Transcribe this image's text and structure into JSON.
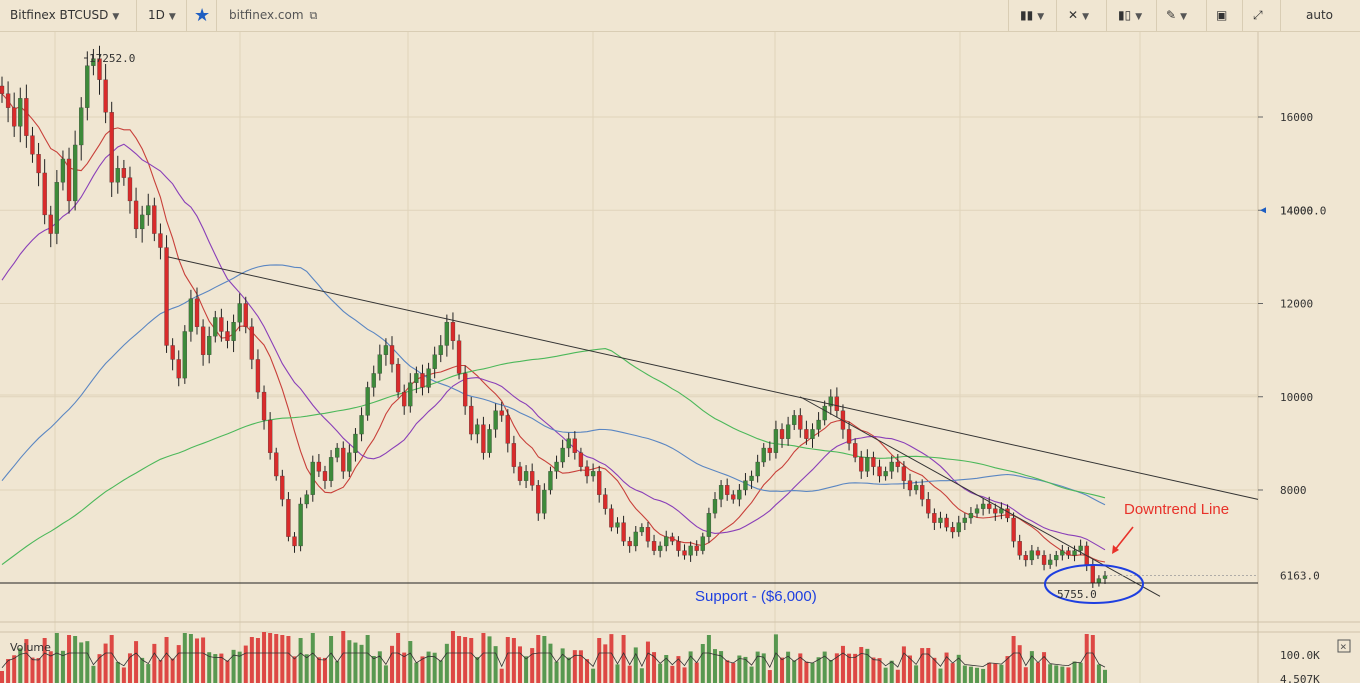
{
  "toolbar": {
    "symbol": "Bitfinex BTCUSD",
    "interval": "1D",
    "site": "bitfinex.com",
    "scale": "auto",
    "icons": [
      "bar-style-icon",
      "indicator-icon",
      "compare-icon",
      "drawing-icon",
      "snapshot-icon",
      "fullscreen-icon"
    ]
  },
  "chart_data": {
    "type": "candlestick",
    "title": "",
    "price_axis": {
      "ticks": [
        8000,
        10000,
        12000,
        14000,
        16000
      ],
      "range": [
        5400,
        17700
      ]
    },
    "volume_axis": {
      "ticks": [
        "100.0K",
        "4.507K"
      ]
    },
    "markers": {
      "high_label": "17252.0",
      "low_label": "5755.0",
      "last_price": "6163.0",
      "crosshair_price": "14000.0"
    },
    "annotations": {
      "support_text": "Support - ($6,000)",
      "downtrend_text": "Downtrend Line",
      "support_level": 5900
    },
    "trend_lines": [
      {
        "name": "long-downtrend",
        "from": [
          168,
          13000
        ],
        "to": [
          1258,
          7800
        ]
      },
      {
        "name": "short-downtrend",
        "from": [
          800,
          10000
        ],
        "to": [
          1160,
          5720
        ]
      }
    ],
    "series_colors": {
      "up": "#3d8a3a",
      "down": "#d92b2b",
      "ma_red": "#c8403a",
      "ma_purple": "#8a3fb8",
      "ma_blue": "#5a86c2",
      "ma_green": "#4cb85a"
    },
    "volume_label": "Volume",
    "closes": [
      16500,
      16200,
      15800,
      16400,
      15600,
      15200,
      14800,
      13900,
      13500,
      14600,
      15100,
      14200,
      15400,
      16200,
      17100,
      17252,
      16800,
      16100,
      14600,
      14900,
      14700,
      14200,
      13600,
      13900,
      14100,
      13500,
      13200,
      11100,
      10800,
      10400,
      11400,
      12100,
      11500,
      10900,
      11300,
      11700,
      11400,
      11200,
      11600,
      12000,
      11500,
      10800,
      10100,
      9500,
      8800,
      8300,
      7800,
      7000,
      6800,
      7700,
      7900,
      8600,
      8400,
      8200,
      8700,
      8900,
      8400,
      8800,
      9200,
      9600,
      10200,
      10500,
      10900,
      11100,
      10700,
      10100,
      9800,
      10300,
      10500,
      10200,
      10600,
      10900,
      11100,
      11600,
      11200,
      10500,
      9800,
      9200,
      9400,
      8800,
      9300,
      9700,
      9600,
      9000,
      8500,
      8200,
      8400,
      8100,
      7500,
      8000,
      8400,
      8600,
      8900,
      9100,
      8800,
      8500,
      8300,
      8400,
      7900,
      7600,
      7200,
      7300,
      6900,
      6800,
      7100,
      7200,
      6900,
      6700,
      6800,
      7000,
      6900,
      6700,
      6600,
      6800,
      6700,
      7000,
      7500,
      7800,
      8100,
      7900,
      7800,
      8000,
      8200,
      8300,
      8600,
      8900,
      8800,
      9300,
      9100,
      9400,
      9600,
      9300,
      9100,
      9300,
      9500,
      9800,
      10000,
      9700,
      9300,
      9000,
      8700,
      8400,
      8700,
      8500,
      8300,
      8400,
      8600,
      8500,
      8200,
      8000,
      8100,
      7800,
      7500,
      7300,
      7400,
      7200,
      7100,
      7300,
      7400,
      7500,
      7600,
      7700,
      7600,
      7500,
      7600,
      7400,
      6900,
      6600,
      6500,
      6700,
      6600,
      6400,
      6500,
      6600,
      6700,
      6600,
      6700,
      6800,
      6400,
      6000,
      6100,
      6163
    ]
  }
}
